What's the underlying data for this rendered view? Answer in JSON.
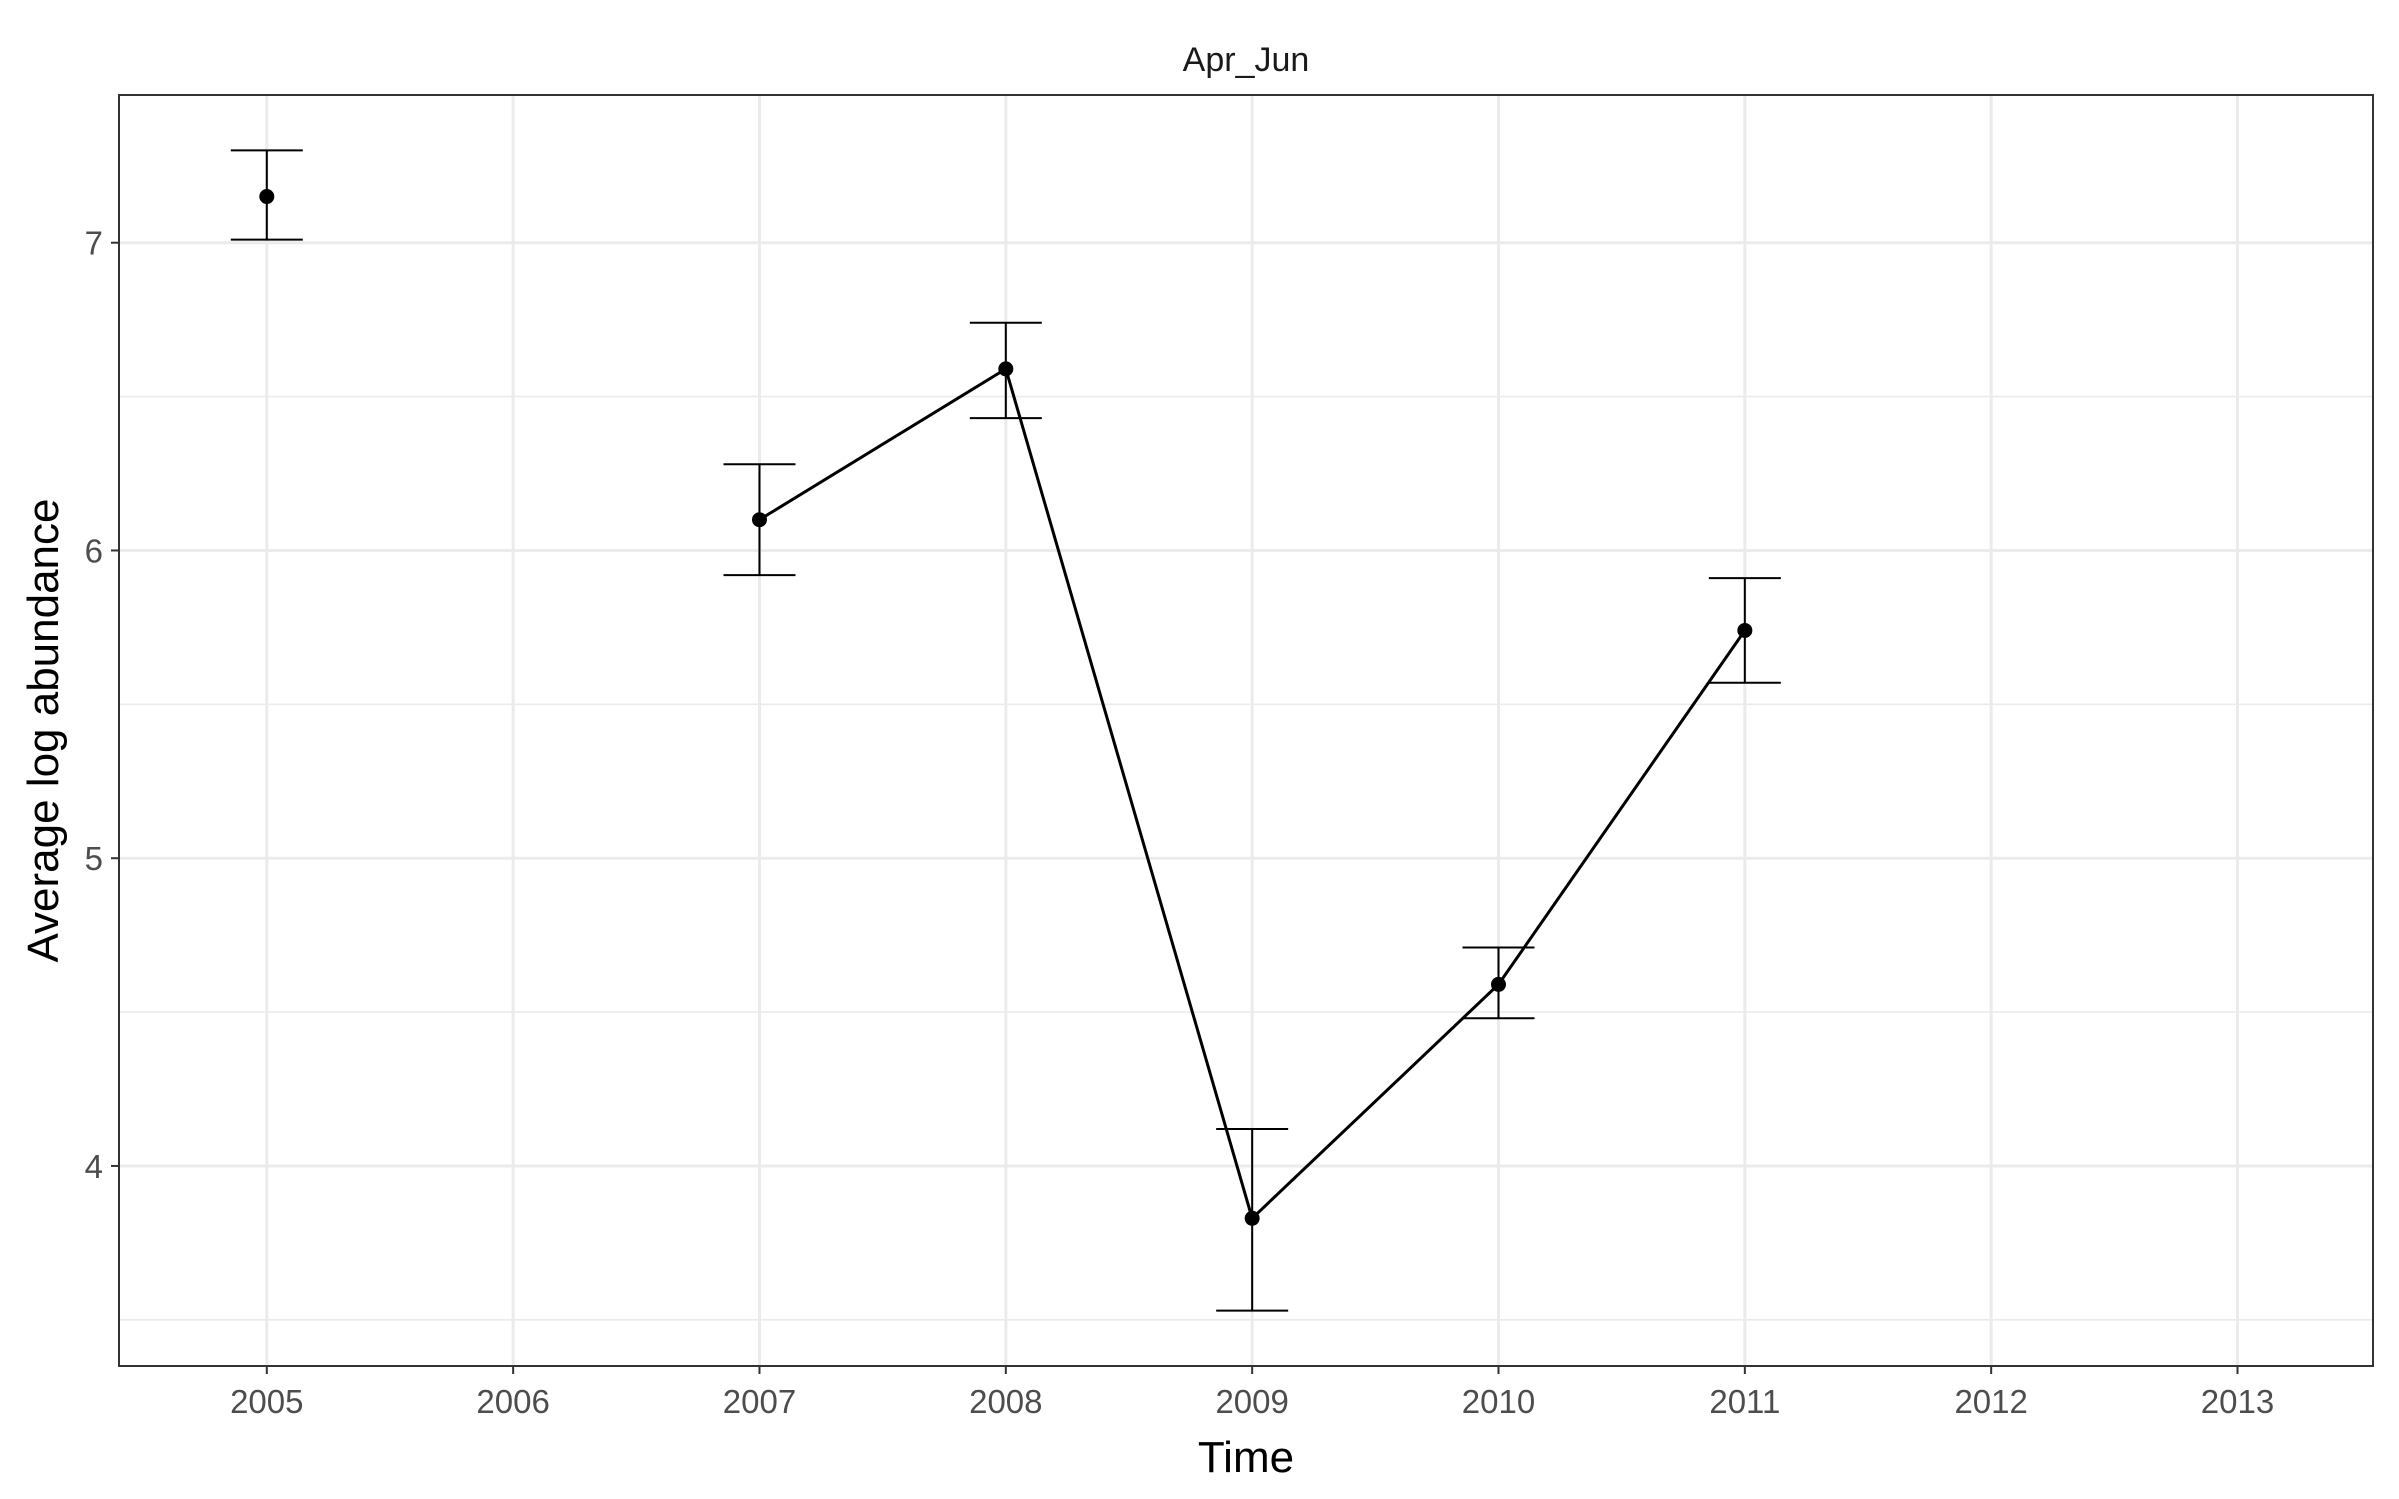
{
  "chart_data": {
    "type": "line",
    "title": "Apr_Jun",
    "xlabel": "Time",
    "ylabel": "Average log abundance",
    "x_ticks": [
      2005,
      2006,
      2007,
      2008,
      2009,
      2010,
      2011,
      2012,
      2013
    ],
    "y_ticks": [
      4,
      5,
      6,
      7
    ],
    "xlim": [
      2004.4,
      2013.55
    ],
    "ylim": [
      3.35,
      7.48
    ],
    "grid": true,
    "legend": "none",
    "series": [
      {
        "points": [
          {
            "x": 2005,
            "y": 7.15,
            "lower": 7.01,
            "upper": 7.3
          },
          {
            "x": 2007,
            "y": 6.1,
            "lower": 5.92,
            "upper": 6.28
          },
          {
            "x": 2008,
            "y": 6.59,
            "lower": 6.43,
            "upper": 6.74
          },
          {
            "x": 2009,
            "y": 3.83,
            "lower": 3.53,
            "upper": 4.12
          },
          {
            "x": 2010,
            "y": 4.59,
            "lower": 4.48,
            "upper": 4.71
          },
          {
            "x": 2011,
            "y": 5.74,
            "lower": 5.57,
            "upper": 5.91
          }
        ],
        "line_segments": [
          [
            2007,
            2008,
            2009,
            2010,
            2011
          ]
        ]
      }
    ]
  }
}
